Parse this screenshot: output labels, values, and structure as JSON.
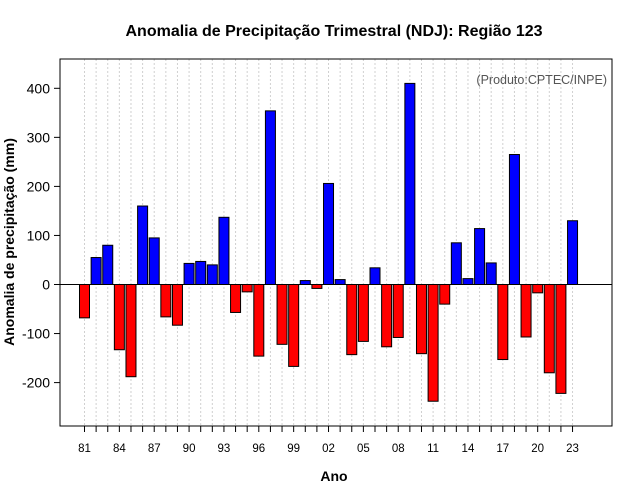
{
  "chart_data": {
    "type": "bar",
    "title": "Anomalia de Precipitação Trimestral (NDJ): Região 123",
    "xlabel": "Ano",
    "ylabel": "Anomalia de precipitação (mm)",
    "annotation": "(Produto:CPTEC/INPE)",
    "ylim": [
      -290,
      460
    ],
    "y_ticks": [
      -200,
      -100,
      0,
      100,
      200,
      300,
      400
    ],
    "x_tick_labels": [
      "81",
      "84",
      "87",
      "90",
      "93",
      "96",
      "99",
      "02",
      "05",
      "08",
      "11",
      "14",
      "17",
      "20",
      "23"
    ],
    "positive_color": "#0000ff",
    "negative_color": "#ff0000",
    "grid": true,
    "categories": [
      "1981",
      "1982",
      "1983",
      "1984",
      "1985",
      "1986",
      "1987",
      "1988",
      "1989",
      "1990",
      "1991",
      "1992",
      "1993",
      "1994",
      "1995",
      "1996",
      "1997",
      "1998",
      "1999",
      "2000",
      "2001",
      "2002",
      "2003",
      "2004",
      "2005",
      "2006",
      "2007",
      "2008",
      "2009",
      "2010",
      "2011",
      "2012",
      "2013",
      "2014",
      "2015",
      "2016",
      "2017",
      "2018",
      "2019",
      "2020",
      "2021",
      "2022",
      "2023"
    ],
    "values": [
      -68,
      55,
      80,
      -133,
      -188,
      160,
      95,
      -66,
      -83,
      43,
      47,
      40,
      137,
      -57,
      -15,
      -146,
      354,
      -122,
      -167,
      8,
      -8,
      206,
      10,
      -143,
      -116,
      34,
      -127,
      -108,
      410,
      -141,
      -238,
      -40,
      85,
      12,
      114,
      44,
      -153,
      265,
      -107,
      -17,
      -180,
      -222,
      130
    ]
  }
}
